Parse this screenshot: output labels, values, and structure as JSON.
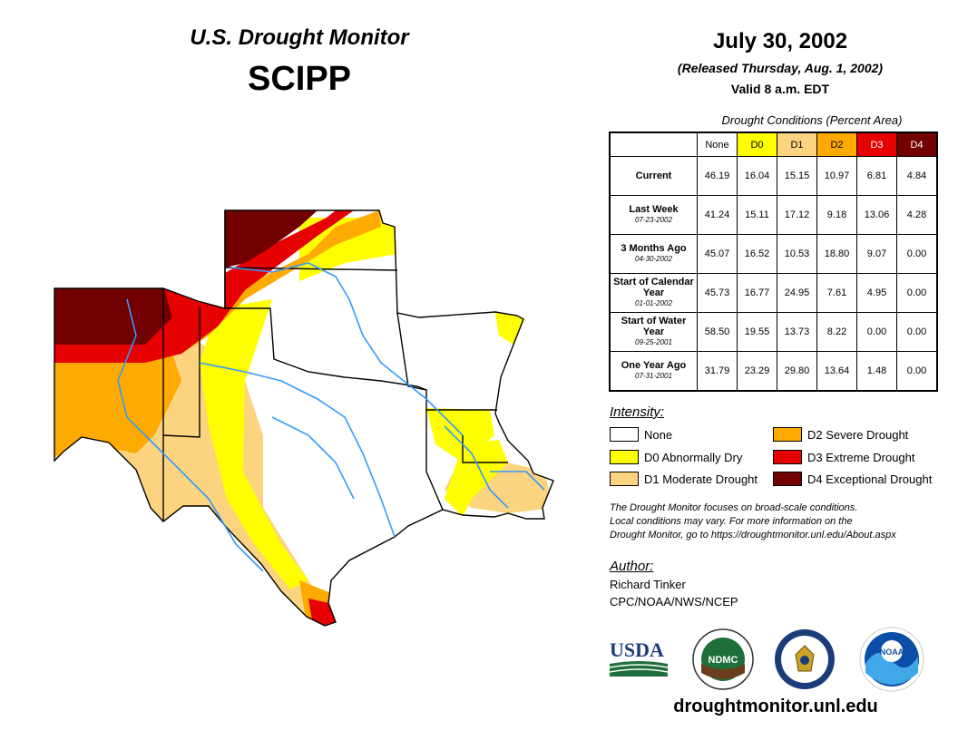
{
  "header": {
    "title": "U.S. Drought Monitor",
    "region": "SCIPP",
    "date": "July 30, 2002",
    "released": "(Released Thursday, Aug. 1, 2002)",
    "valid": "Valid 8 a.m. EDT"
  },
  "stats_table": {
    "caption": "Drought Conditions (Percent Area)",
    "columns": [
      "None",
      "D0",
      "D1",
      "D2",
      "D3",
      "D4"
    ],
    "column_colors": [
      "#ffffff",
      "#ffff00",
      "#fcd37f",
      "#ffaa00",
      "#e60000",
      "#730000"
    ],
    "rows": [
      {
        "label": "Current",
        "sublabel": "",
        "values": [
          "46.19",
          "16.04",
          "15.15",
          "10.97",
          "6.81",
          "4.84"
        ]
      },
      {
        "label": "Last Week",
        "sublabel": "07-23-2002",
        "values": [
          "41.24",
          "15.11",
          "17.12",
          "9.18",
          "13.06",
          "4.28"
        ]
      },
      {
        "label": "3 Months Ago",
        "sublabel": "04-30-2002",
        "values": [
          "45.07",
          "16.52",
          "10.53",
          "18.80",
          "9.07",
          "0.00"
        ]
      },
      {
        "label": "Start of Calendar Year",
        "sublabel": "01-01-2002",
        "values": [
          "45.73",
          "16.77",
          "24.95",
          "7.61",
          "4.95",
          "0.00"
        ]
      },
      {
        "label": "Start of Water Year",
        "sublabel": "09-25-2001",
        "values": [
          "58.50",
          "19.55",
          "13.73",
          "8.22",
          "0.00",
          "0.00"
        ]
      },
      {
        "label": "One Year Ago",
        "sublabel": "07-31-2001",
        "values": [
          "31.79",
          "23.29",
          "29.80",
          "13.64",
          "1.48",
          "0.00"
        ]
      }
    ]
  },
  "legend": {
    "title": "Intensity:",
    "items": [
      {
        "label": "None",
        "color": "#ffffff"
      },
      {
        "label": "D0 Abnormally Dry",
        "color": "#ffff00"
      },
      {
        "label": "D1 Moderate Drought",
        "color": "#fcd37f"
      },
      {
        "label": "D2 Severe Drought",
        "color": "#ffaa00"
      },
      {
        "label": "D3 Extreme Drought",
        "color": "#e60000"
      },
      {
        "label": "D4 Exceptional Drought",
        "color": "#730000"
      }
    ]
  },
  "note": {
    "line1": "The Drought Monitor focuses on broad-scale conditions.",
    "line2": "Local conditions may vary. For more information on the",
    "line3": "Drought Monitor, go to https://droughtmonitor.unl.edu/About.aspx"
  },
  "author": {
    "title": "Author:",
    "name": "Richard Tinker",
    "org": "CPC/NOAA/NWS/NCEP"
  },
  "logos": {
    "usda": "USDA",
    "ndmc": "NDMC",
    "noaa": "NOAA"
  },
  "website": "droughtmonitor.unl.edu"
}
